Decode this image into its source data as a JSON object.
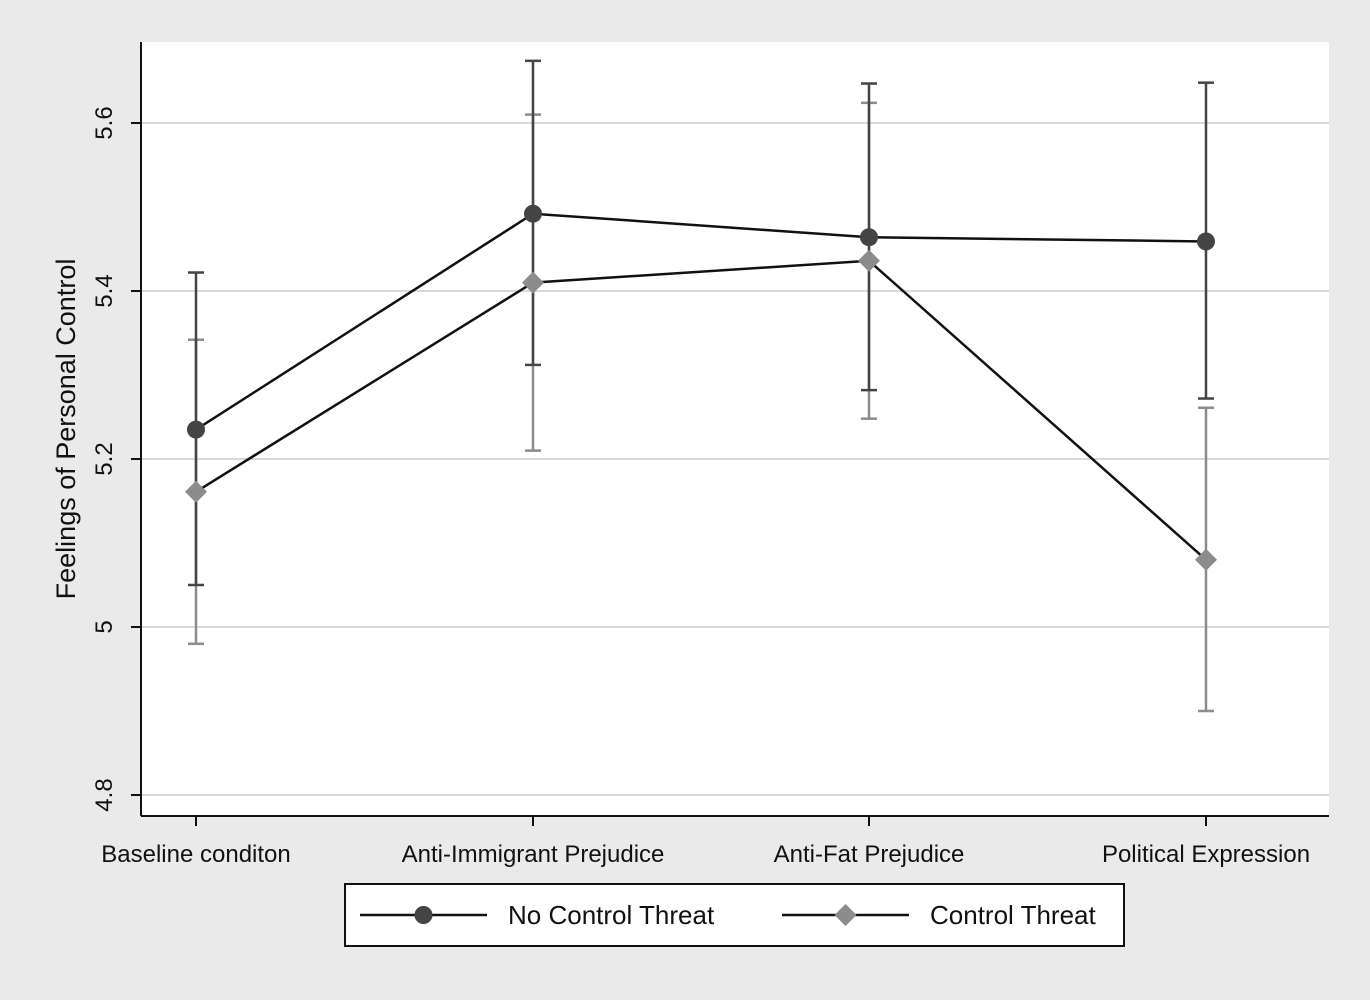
{
  "chart_data": {
    "type": "line",
    "title": "",
    "xlabel": "",
    "ylabel": "Feelings of Personal Control",
    "categories": [
      "Baseline conditon",
      "Anti-Immigrant Prejudice",
      "Anti-Fat Prejudice",
      "Political Expression"
    ],
    "ylim": [
      4.8,
      5.7
    ],
    "yticks": [
      4.8,
      5,
      5.2,
      5.4,
      5.6
    ],
    "ytick_labels": [
      "4.8",
      "5",
      "5.2",
      "5.4",
      "5.6"
    ],
    "grid": true,
    "error_bars": true,
    "legend_position": "bottom",
    "series": [
      {
        "name": "No Control Threat",
        "marker": "circle",
        "color": "#444444",
        "values": [
          5.235,
          5.492,
          5.464,
          5.459
        ],
        "lower": [
          5.05,
          5.312,
          5.282,
          5.272
        ],
        "upper": [
          5.422,
          5.674,
          5.647,
          5.648
        ]
      },
      {
        "name": "Control Threat",
        "marker": "diamond",
        "color": "#8c8c8c",
        "values": [
          5.161,
          5.41,
          5.436,
          5.08
        ],
        "lower": [
          4.98,
          5.21,
          5.248,
          4.9
        ],
        "upper": [
          5.342,
          5.61,
          5.624,
          5.261
        ]
      }
    ]
  }
}
